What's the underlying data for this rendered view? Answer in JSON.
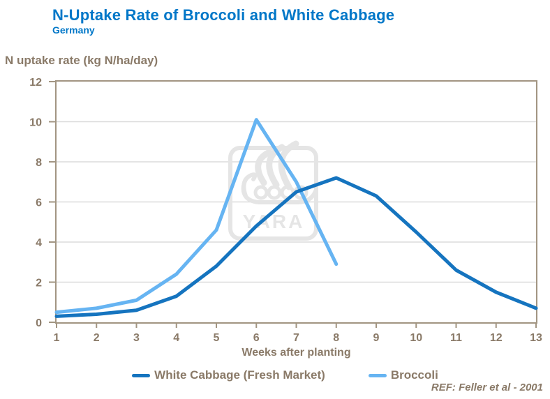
{
  "header": {
    "title": "N-Uptake Rate of Broccoli and White Cabbage",
    "subtitle": "Germany"
  },
  "chart_data": {
    "type": "line",
    "title": "N-Uptake Rate of Broccoli and White Cabbage",
    "subtitle": "Germany",
    "xlabel": "Weeks after planting",
    "ylabel": "N uptake rate (kg N/ha/day)",
    "xlim": [
      1,
      13
    ],
    "ylim": [
      0,
      12
    ],
    "xticks": [
      1,
      2,
      3,
      4,
      5,
      6,
      7,
      8,
      9,
      10,
      11,
      12,
      13
    ],
    "yticks": [
      0,
      2,
      4,
      6,
      8,
      10,
      12
    ],
    "grid": "horizontal-light",
    "legend_position": "bottom-center",
    "series": [
      {
        "name": "White Cabbage (Fresh Market)",
        "color": "#1574BF",
        "x": [
          1,
          2,
          3,
          4,
          5,
          6,
          7,
          8,
          9,
          10,
          11,
          12,
          13
        ],
        "values": [
          0.3,
          0.4,
          0.6,
          1.3,
          2.8,
          4.8,
          6.5,
          7.2,
          6.3,
          4.5,
          2.6,
          1.5,
          0.7
        ]
      },
      {
        "name": "Broccoli",
        "color": "#66B4F2",
        "x": [
          1,
          2,
          3,
          4,
          5,
          6,
          7,
          8
        ],
        "values": [
          0.5,
          0.7,
          1.1,
          2.4,
          4.6,
          10.1,
          7.0,
          2.9
        ]
      }
    ]
  },
  "watermark": {
    "text": "YARA"
  },
  "footer": {
    "reference": "REF: Feller et al - 2001"
  },
  "colors": {
    "title_blue": "#0077C8",
    "taupe_text": "#8A7A68",
    "axis_line": "#A29582",
    "gridline": "#DBDBDB",
    "white_cabbage_blue": "#1574BF",
    "broccoli_blue": "#66B4F2",
    "watermark_gray": "#E5E5E5",
    "background": "#FFFFFF"
  }
}
